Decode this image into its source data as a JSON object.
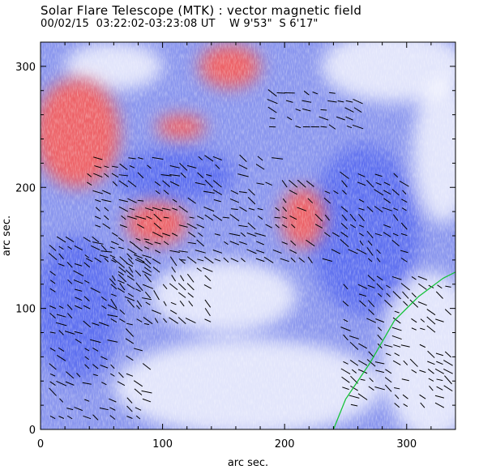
{
  "title": "Solar Flare Telescope (MTK) : vector magnetic field",
  "subtitle": "00/02/15  03:22:02-03:23:08 UT    W 9'53\"  S 6'17\"",
  "axes": {
    "xlabel": "arc sec.",
    "ylabel": "arc sec.",
    "xlim": [
      0,
      340
    ],
    "ylim": [
      0,
      320
    ],
    "xticks": [
      0,
      100,
      200,
      300
    ],
    "yticks": [
      0,
      100,
      200,
      300
    ],
    "xtick_labels": [
      "0",
      "100",
      "200",
      "300"
    ],
    "ytick_labels": [
      "0",
      "100",
      "200",
      "300"
    ]
  },
  "colors": {
    "positive": "#f26060",
    "negative": "#5a6cf0",
    "neutral": "#ffffff",
    "neutral_line": "#17c33a",
    "vectors": "#000000"
  },
  "image_content": {
    "map": "vector magnetic field magnetogram",
    "positive_regions": [
      {
        "cx": 30,
        "cy": 245,
        "rx": 35,
        "ry": 45
      },
      {
        "cx": 155,
        "cy": 300,
        "rx": 25,
        "ry": 18
      },
      {
        "cx": 115,
        "cy": 250,
        "rx": 20,
        "ry": 10
      },
      {
        "cx": 95,
        "cy": 170,
        "rx": 25,
        "ry": 18
      },
      {
        "cx": 215,
        "cy": 175,
        "rx": 18,
        "ry": 25
      }
    ],
    "negative_regions": [
      {
        "cx": 110,
        "cy": 210,
        "rx": 50,
        "ry": 22
      },
      {
        "cx": 30,
        "cy": 100,
        "rx": 35,
        "ry": 60
      },
      {
        "cx": 265,
        "cy": 165,
        "rx": 45,
        "ry": 70
      }
    ],
    "neutral_line_points": [
      [
        240,
        0
      ],
      [
        250,
        25
      ],
      [
        270,
        55
      ],
      [
        290,
        90
      ],
      [
        310,
        110
      ],
      [
        330,
        125
      ],
      [
        340,
        130
      ]
    ]
  }
}
